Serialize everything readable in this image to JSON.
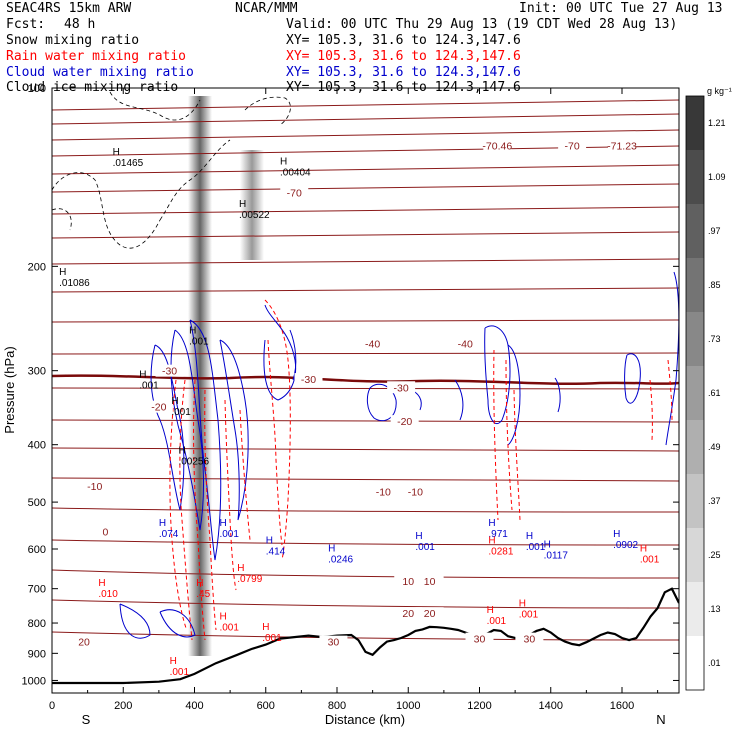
{
  "header": {
    "model": "SEAC4RS 15km ARW",
    "org": "NCAR/MMM",
    "init": "Init: 00 UTC Tue 27 Aug 13",
    "fcst_label": "Fcst:",
    "fcst_value": "48 h",
    "valid": "Valid: 00 UTC Thu 29 Aug 13 (19 CDT Wed 28 Aug 13)"
  },
  "fields": [
    {
      "name": "Snow mixing ratio",
      "xy": "XY= 105.3, 31.6 to 124.3,147.6",
      "color": "#000000"
    },
    {
      "name": "Rain water mixing ratio",
      "xy": "XY= 105.3, 31.6 to 124.3,147.6",
      "color": "#ff0000"
    },
    {
      "name": "Cloud water mixing ratio",
      "xy": "XY= 105.3, 31.6 to 124.3,147.6",
      "color": "#0000cc"
    },
    {
      "name": "Cloud ice mixing ratio",
      "xy": "XY= 105.3, 31.6 to 124.3,147.6",
      "color": "#000000"
    }
  ],
  "colorbar": {
    "unit": "g kg⁻¹",
    "ticks": [
      "1.21",
      "1.09",
      ".97",
      ".85",
      ".73",
      ".61",
      ".49",
      ".37",
      ".25",
      ".13",
      ".01"
    ]
  },
  "chart_data": {
    "type": "contour",
    "xlabel": "Distance (km)",
    "ylabel": "Pressure (hPa)",
    "xlim": [
      0,
      1760
    ],
    "ylim": [
      1050,
      100
    ],
    "y_scale": "log",
    "x_ticks": [
      "0",
      "200",
      "400",
      "600",
      "800",
      "1000",
      "1200",
      "1400",
      "1600"
    ],
    "y_ticks": [
      "100",
      "200",
      "300",
      "400",
      "500",
      "600",
      "700",
      "800",
      "900",
      "1000"
    ],
    "x_end_labels": {
      "left": "S",
      "right": "N"
    },
    "temperature_labels": [
      {
        "text": "-70",
        "x": 680,
        "p": 150
      },
      {
        "text": "-70.46",
        "x": 1250,
        "p": 125
      },
      {
        "text": "-70",
        "x": 1460,
        "p": 125
      },
      {
        "text": "-71.23",
        "x": 1600,
        "p": 125
      },
      {
        "text": "-40",
        "x": 900,
        "p": 270
      },
      {
        "text": "-40",
        "x": 1160,
        "p": 270
      },
      {
        "text": "-30",
        "x": 330,
        "p": 300
      },
      {
        "text": "-30",
        "x": 720,
        "p": 310
      },
      {
        "text": "-30",
        "x": 980,
        "p": 320
      },
      {
        "text": "-20",
        "x": 300,
        "p": 345
      },
      {
        "text": "-20",
        "x": 990,
        "p": 365
      },
      {
        "text": "-10",
        "x": 120,
        "p": 470
      },
      {
        "text": "-10",
        "x": 930,
        "p": 480
      },
      {
        "text": "-10",
        "x": 1020,
        "p": 480
      },
      {
        "text": "0",
        "x": 150,
        "p": 560
      },
      {
        "text": "10",
        "x": 1000,
        "p": 680
      },
      {
        "text": "10",
        "x": 1060,
        "p": 680
      },
      {
        "text": "20",
        "x": 1000,
        "p": 770
      },
      {
        "text": "20",
        "x": 1060,
        "p": 770
      },
      {
        "text": "20",
        "x": 90,
        "p": 860
      },
      {
        "text": "30",
        "x": 790,
        "p": 860
      },
      {
        "text": "30",
        "x": 1200,
        "p": 850
      },
      {
        "text": "30",
        "x": 1340,
        "p": 850
      }
    ],
    "extrema_labels": [
      {
        "text": ".01465",
        "x": 170,
        "p": 135,
        "color": "#000000"
      },
      {
        "text": ".00404",
        "x": 640,
        "p": 140,
        "color": "#000000"
      },
      {
        "text": ".00522",
        "x": 525,
        "p": 165,
        "color": "#000000"
      },
      {
        "text": ".01086",
        "x": 20,
        "p": 215,
        "color": "#000000"
      },
      {
        "text": ".001",
        "x": 385,
        "p": 270,
        "color": "#000000"
      },
      {
        "text": ".001",
        "x": 245,
        "p": 320,
        "color": "#000000"
      },
      {
        "text": ".001",
        "x": 335,
        "p": 355,
        "color": "#000000"
      },
      {
        "text": ".00256",
        "x": 355,
        "p": 430,
        "color": "#000000"
      },
      {
        "text": ".074",
        "x": 300,
        "p": 570,
        "color": "#0000cc"
      },
      {
        "text": ".001",
        "x": 470,
        "p": 570,
        "color": "#0000cc"
      },
      {
        "text": ".414",
        "x": 600,
        "p": 610,
        "color": "#0000cc"
      },
      {
        "text": ".0246",
        "x": 775,
        "p": 630,
        "color": "#0000cc"
      },
      {
        "text": ".001",
        "x": 1020,
        "p": 600,
        "color": "#0000cc"
      },
      {
        "text": ".971",
        "x": 1225,
        "p": 570,
        "color": "#0000cc"
      },
      {
        "text": ".0281",
        "x": 1225,
        "p": 610,
        "color": "#ff0000"
      },
      {
        "text": ".001",
        "x": 1330,
        "p": 600,
        "color": "#0000cc"
      },
      {
        "text": ".0117",
        "x": 1380,
        "p": 620,
        "color": "#0000cc"
      },
      {
        "text": ".0902",
        "x": 1575,
        "p": 595,
        "color": "#0000cc"
      },
      {
        "text": ".001",
        "x": 1650,
        "p": 630,
        "color": "#ff0000"
      },
      {
        "text": ".0799",
        "x": 520,
        "p": 680,
        "color": "#ff0000"
      },
      {
        "text": ".010",
        "x": 130,
        "p": 720,
        "color": "#ff0000"
      },
      {
        "text": ".45",
        "x": 405,
        "p": 720,
        "color": "#ff0000"
      },
      {
        "text": ".001",
        "x": 1220,
        "p": 800,
        "color": "#ff0000"
      },
      {
        "text": ".001",
        "x": 1310,
        "p": 780,
        "color": "#ff0000"
      },
      {
        "text": ".001",
        "x": 470,
        "p": 820,
        "color": "#ff0000"
      },
      {
        "text": ".001",
        "x": 590,
        "p": 855,
        "color": "#ff0000"
      },
      {
        "text": ".001",
        "x": 330,
        "p": 975,
        "color": "#ff0000"
      }
    ],
    "terrain_surface_hpa": [
      [
        0,
        1010
      ],
      [
        200,
        1010
      ],
      [
        300,
        1005
      ],
      [
        360,
        995
      ],
      [
        400,
        975
      ],
      [
        460,
        935
      ],
      [
        520,
        905
      ],
      [
        560,
        885
      ],
      [
        600,
        870
      ],
      [
        640,
        850
      ],
      [
        680,
        845
      ],
      [
        720,
        840
      ],
      [
        760,
        845
      ],
      [
        800,
        840
      ],
      [
        840,
        838
      ],
      [
        860,
        855
      ],
      [
        880,
        895
      ],
      [
        900,
        905
      ],
      [
        920,
        880
      ],
      [
        940,
        860
      ],
      [
        960,
        855
      ],
      [
        980,
        848
      ],
      [
        1000,
        838
      ],
      [
        1020,
        825
      ],
      [
        1040,
        820
      ],
      [
        1060,
        812
      ],
      [
        1080,
        813
      ],
      [
        1100,
        815
      ],
      [
        1120,
        818
      ],
      [
        1140,
        822
      ],
      [
        1160,
        830
      ],
      [
        1180,
        838
      ],
      [
        1200,
        845
      ],
      [
        1220,
        835
      ],
      [
        1240,
        822
      ],
      [
        1260,
        825
      ],
      [
        1280,
        842
      ],
      [
        1300,
        848
      ],
      [
        1320,
        846
      ],
      [
        1340,
        838
      ],
      [
        1360,
        825
      ],
      [
        1380,
        818
      ],
      [
        1400,
        830
      ],
      [
        1420,
        848
      ],
      [
        1440,
        860
      ],
      [
        1460,
        868
      ],
      [
        1480,
        872
      ],
      [
        1500,
        862
      ],
      [
        1520,
        850
      ],
      [
        1540,
        838
      ],
      [
        1560,
        830
      ],
      [
        1580,
        835
      ],
      [
        1600,
        848
      ],
      [
        1620,
        855
      ],
      [
        1640,
        848
      ],
      [
        1660,
        815
      ],
      [
        1680,
        780
      ],
      [
        1700,
        755
      ],
      [
        1720,
        710
      ],
      [
        1740,
        700
      ],
      [
        1760,
        740
      ]
    ]
  }
}
